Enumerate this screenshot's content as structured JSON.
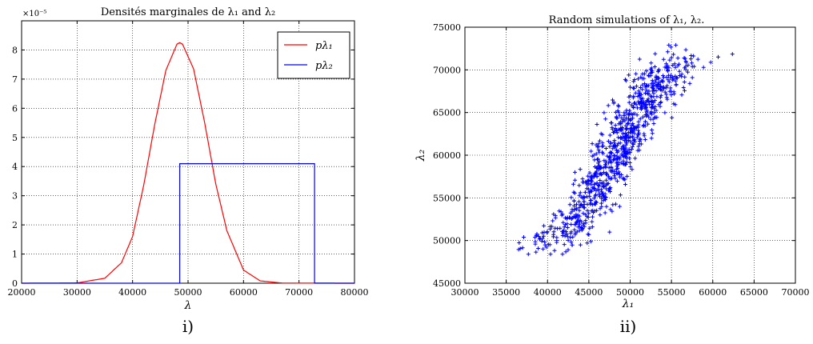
{
  "chart_data": [
    {
      "type": "line",
      "panel_label": "i)",
      "title": "Densités marginales de λ₁ and λ₂",
      "xlabel": "λ",
      "ylabel": "",
      "xlim": [
        20000,
        80000
      ],
      "ylim": [
        0,
        9e-05
      ],
      "y_multiplier_label": "×10⁻⁵",
      "x_ticks": [
        "20000",
        "30000",
        "40000",
        "50000",
        "60000",
        "70000",
        "80000"
      ],
      "y_ticks": [
        "0",
        "1",
        "2",
        "3",
        "4",
        "5",
        "6",
        "7",
        "8"
      ],
      "grid": true,
      "legend_position": "top-right",
      "series": [
        {
          "name": "pλ₁",
          "color": "#ff0000",
          "x": [
            20000,
            30000,
            35000,
            38000,
            40000,
            42000,
            44000,
            46000,
            48000,
            48500,
            49000,
            51000,
            53000,
            55000,
            57000,
            60000,
            63000,
            67000,
            80000
          ],
          "y": [
            0,
            1e-07,
            1.7e-06,
            7e-06,
            1.6e-05,
            3.35e-05,
            5.45e-05,
            7.3e-05,
            8.2e-05,
            8.25e-05,
            8.2e-05,
            7.35e-05,
            5.5e-05,
            3.4e-05,
            1.8e-05,
            4.5e-06,
            8e-07,
            5e-08,
            0
          ]
        },
        {
          "name": "pλ₂",
          "color": "#0000ff",
          "x": [
            20000,
            48500,
            48500,
            72800,
            72800,
            80000
          ],
          "y": [
            0,
            0,
            4.1e-05,
            4.1e-05,
            0,
            0
          ]
        }
      ]
    },
    {
      "type": "scatter",
      "panel_label": "ii)",
      "title": "Random simulations of λ₁, λ₂.",
      "xlabel": "λ₁",
      "ylabel": "λ₂",
      "xlim": [
        30000,
        70000
      ],
      "ylim": [
        45000,
        75000
      ],
      "x_ticks": [
        "30000",
        "35000",
        "40000",
        "45000",
        "50000",
        "55000",
        "60000",
        "65000",
        "70000"
      ],
      "y_ticks": [
        "45000",
        "50000",
        "55000",
        "60000",
        "65000",
        "70000",
        "75000"
      ],
      "grid": true,
      "marker": "+",
      "color": "#0000ff",
      "n_points": 900,
      "x_range": [
        32300,
        65300
      ],
      "y_range": [
        48400,
        72900
      ]
    }
  ]
}
